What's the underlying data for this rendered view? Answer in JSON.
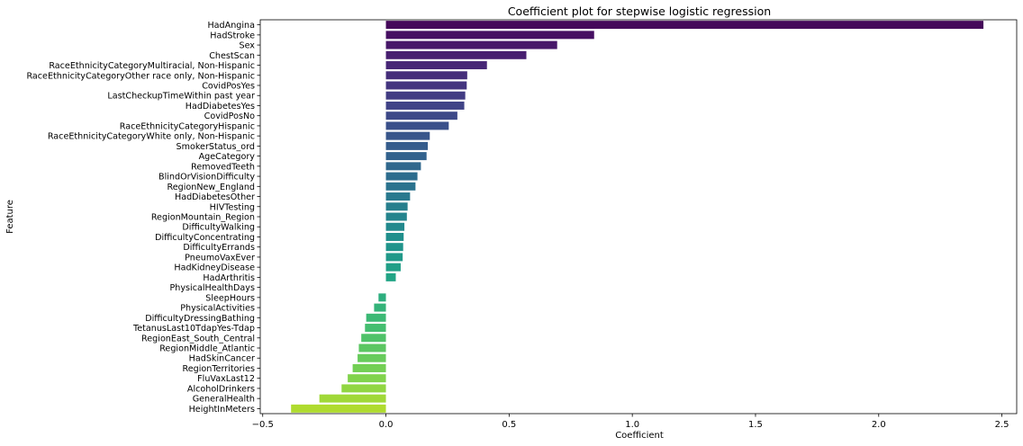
{
  "chart_data": {
    "type": "bar",
    "orientation": "horizontal",
    "title": "Coefficient plot for stepwise logistic regression",
    "xlabel": "Coefficient",
    "ylabel": "Feature",
    "xlim": [
      -0.51,
      2.56
    ],
    "xticks": [
      -0.5,
      0.0,
      0.5,
      1.0,
      1.5,
      2.0,
      2.5
    ],
    "xtick_labels": [
      "−0.5",
      "0.0",
      "0.5",
      "1.0",
      "1.5",
      "2.0",
      "2.5"
    ],
    "grid": false,
    "colormap": "viridis",
    "categories": [
      "HadAngina",
      "HadStroke",
      "Sex",
      "ChestScan",
      "RaceEthnicityCategoryMultiracial, Non-Hispanic",
      "RaceEthnicityCategoryOther race only, Non-Hispanic",
      "CovidPosYes",
      "LastCheckupTimeWithin past year",
      "HadDiabetesYes",
      "CovidPosNo",
      "RaceEthnicityCategoryHispanic",
      "RaceEthnicityCategoryWhite only, Non-Hispanic",
      "SmokerStatus_ord",
      "AgeCategory",
      "RemovedTeeth",
      "BlindOrVisionDifficulty",
      "RegionNew_England",
      "HadDiabetesOther",
      "HIVTesting",
      "RegionMountain_Region",
      "DifficultyWalking",
      "DifficultyConcentrating",
      "DifficultyErrands",
      "PneumoVaxEver",
      "HadKidneyDisease",
      "HadArthritis",
      "PhysicalHealthDays",
      "SleepHours",
      "PhysicalActivities",
      "DifficultyDressingBathing",
      "TetanusLast10TdapYes-Tdap",
      "RegionEast_South_Central",
      "RegionMiddle_Atlantic",
      "HadSkinCancer",
      "RegionTerritories",
      "FluVaxLast12",
      "AlcoholDrinkers",
      "GeneralHealth",
      "HeightInMeters"
    ],
    "values": [
      2.425,
      0.845,
      0.695,
      0.57,
      0.41,
      0.33,
      0.328,
      0.322,
      0.318,
      0.29,
      0.255,
      0.178,
      0.17,
      0.165,
      0.142,
      0.128,
      0.12,
      0.098,
      0.088,
      0.085,
      0.075,
      0.072,
      0.07,
      0.068,
      0.06,
      0.04,
      0.0,
      -0.03,
      -0.048,
      -0.08,
      -0.085,
      -0.1,
      -0.11,
      -0.115,
      -0.135,
      -0.155,
      -0.18,
      -0.27,
      -0.385
    ]
  }
}
